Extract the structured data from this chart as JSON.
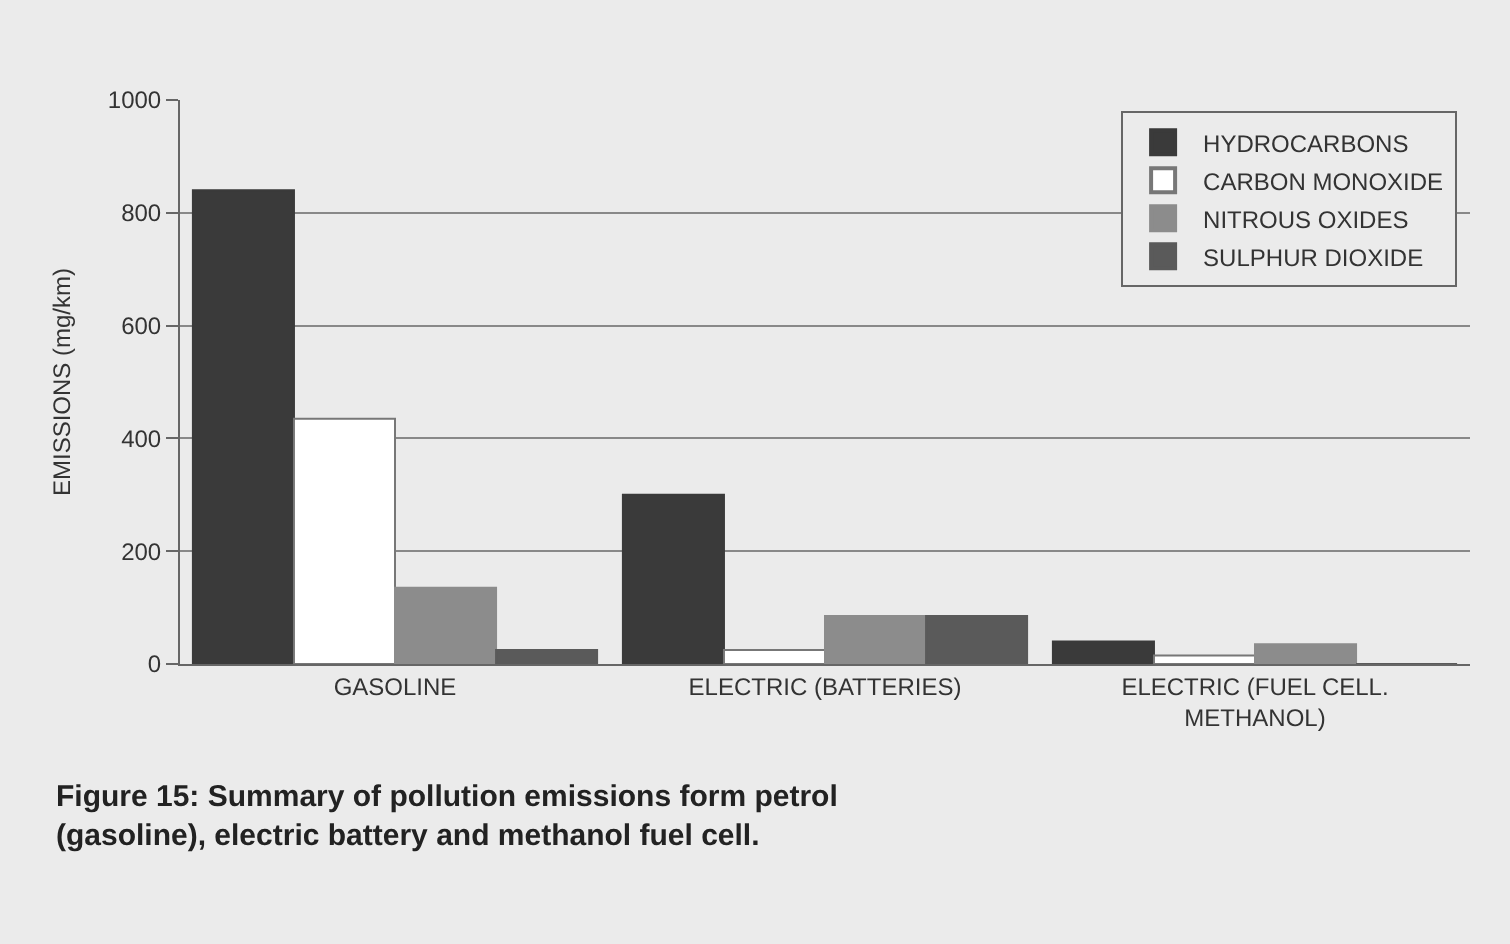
{
  "chart_data": {
    "type": "bar",
    "categories": [
      "GASOLINE",
      "ELECTRIC (BATTERIES)",
      "ELECTRIC (FUEL CELL.\nMETHANOL)"
    ],
    "series": [
      {
        "name": "HYDROCARBONS",
        "color": "#3a3a3a",
        "values": [
          840,
          300,
          40
        ]
      },
      {
        "name": "CARBON MONOXIDE",
        "color": "#ffffff",
        "values": [
          435,
          25,
          15
        ]
      },
      {
        "name": "NITROUS OXIDES",
        "color": "#8c8c8c",
        "values": [
          135,
          85,
          35
        ]
      },
      {
        "name": "SULPHUR DIOXIDE",
        "color": "#5a5a5a",
        "values": [
          25,
          85,
          0
        ]
      }
    ],
    "ylabel": "EMISSIONS (mg/km)",
    "ylim": [
      0,
      1000
    ],
    "yticks": [
      0,
      200,
      400,
      600,
      800,
      1000
    ],
    "grid": "y",
    "legend": "top right",
    "annotations": [
      "Figure 15: Summary of pollution emissions form petrol\n(gasoline), electric battery and methanol fuel cell."
    ]
  }
}
